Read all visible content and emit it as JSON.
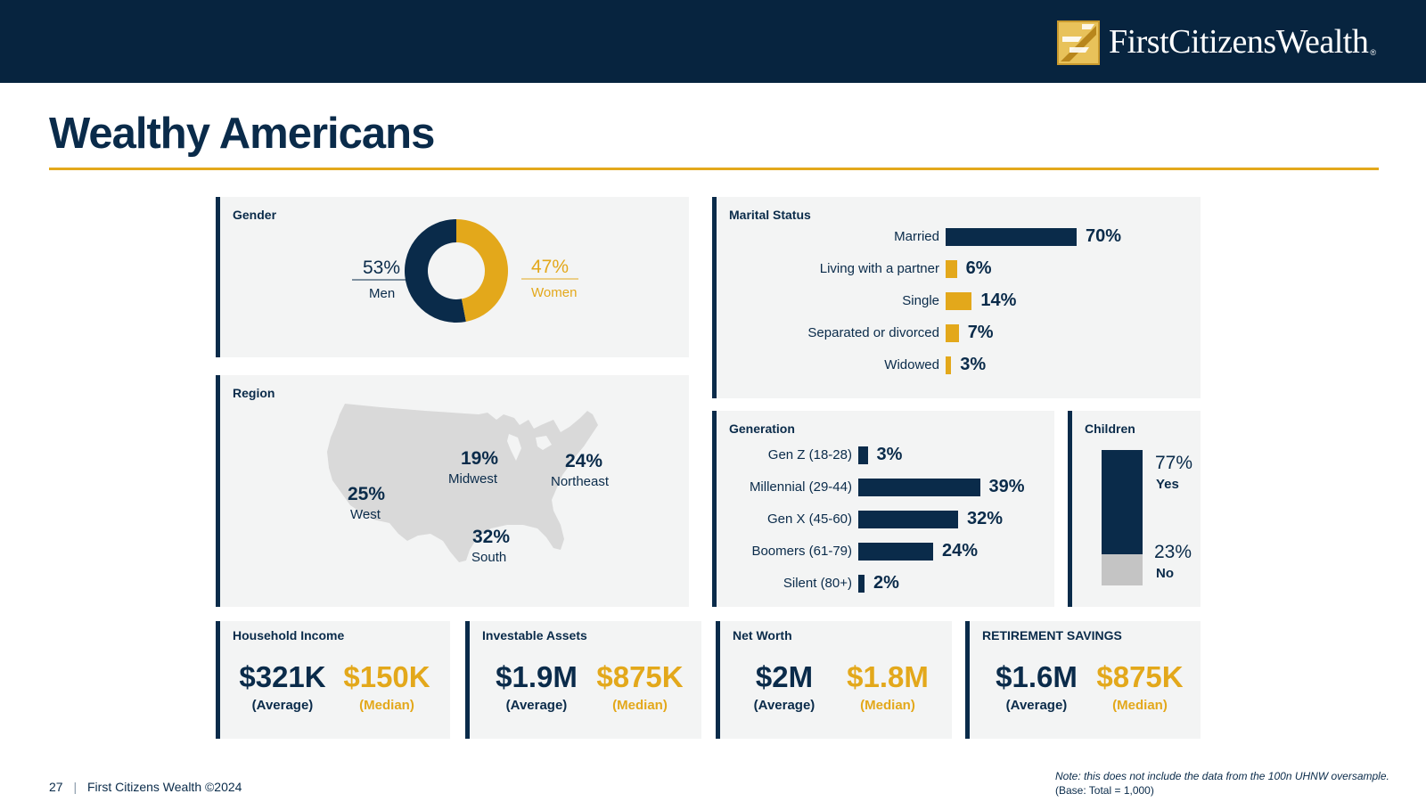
{
  "header": {
    "brand": "FirstCitizensWealth",
    "registered": "®"
  },
  "page_title": "Wealthy Americans",
  "gender": {
    "title": "Gender",
    "men_pct": "53%",
    "men_label": "Men",
    "women_pct": "47%",
    "women_label": "Women"
  },
  "region": {
    "title": "Region",
    "west_pct": "25%",
    "west_label": "West",
    "midwest_pct": "19%",
    "midwest_label": "Midwest",
    "northeast_pct": "24%",
    "northeast_label": "Northeast",
    "south_pct": "32%",
    "south_label": "South"
  },
  "marital": {
    "title": "Marital Status"
  },
  "generation": {
    "title": "Generation"
  },
  "children": {
    "title": "Children",
    "yes_pct": "77%",
    "yes_label": "Yes",
    "no_pct": "23%",
    "no_label": "No"
  },
  "stats": [
    {
      "title": "Household Income",
      "avg": "$321K",
      "med": "$150K",
      "avg_label": "(Average)",
      "med_label": "(Median)"
    },
    {
      "title": "Investable Assets",
      "avg": "$1.9M",
      "med": "$875K",
      "avg_label": "(Average)",
      "med_label": "(Median)"
    },
    {
      "title": "Net Worth",
      "avg": "$2M",
      "med": "$1.8M",
      "avg_label": "(Average)",
      "med_label": "(Median)"
    },
    {
      "title": "RETIREMENT SAVINGS",
      "avg": "$1.6M",
      "med": "$875K",
      "avg_label": "(Average)",
      "med_label": "(Median)"
    }
  ],
  "footer": {
    "page": "27",
    "sep": "|",
    "copyright": "First Citizens Wealth ©2024",
    "note": "Note: this does not include the data from the 100n UHNW oversample.",
    "base": "(Base: Total = 1,000)"
  },
  "colors": {
    "navy": "#0a2b4a",
    "gold": "#e3a81b",
    "gray": "#c4c4c4",
    "panel": "#f3f4f4"
  },
  "chart_data": [
    {
      "type": "pie",
      "title": "Gender",
      "categories": [
        "Men",
        "Women"
      ],
      "values": [
        53,
        47
      ]
    },
    {
      "type": "bar",
      "title": "Marital Status",
      "categories": [
        "Married",
        "Living with a partner",
        "Single",
        "Separated or divorced",
        "Widowed"
      ],
      "values": [
        70,
        6,
        14,
        7,
        3
      ],
      "value_labels": [
        "70%",
        "6%",
        "14%",
        "7%",
        "3%"
      ],
      "colors": [
        "#0a2b4a",
        "#e3a81b",
        "#e3a81b",
        "#e3a81b",
        "#e3a81b"
      ],
      "ylim": [
        0,
        100
      ]
    },
    {
      "type": "bar",
      "title": "Generation",
      "categories": [
        "Gen Z (18-28)",
        "Millennial (29-44)",
        "Gen X (45-60)",
        "Boomers (61-79)",
        "Silent (80+)"
      ],
      "values": [
        3,
        39,
        32,
        24,
        2
      ],
      "value_labels": [
        "3%",
        "39%",
        "32%",
        "24%",
        "2%"
      ],
      "ylim": [
        0,
        100
      ]
    },
    {
      "type": "bar",
      "title": "Children",
      "categories": [
        "Yes",
        "No"
      ],
      "values": [
        77,
        23
      ]
    },
    {
      "type": "table",
      "title": "Region",
      "categories": [
        "West",
        "Midwest",
        "Northeast",
        "South"
      ],
      "values": [
        25,
        19,
        24,
        32
      ]
    }
  ]
}
